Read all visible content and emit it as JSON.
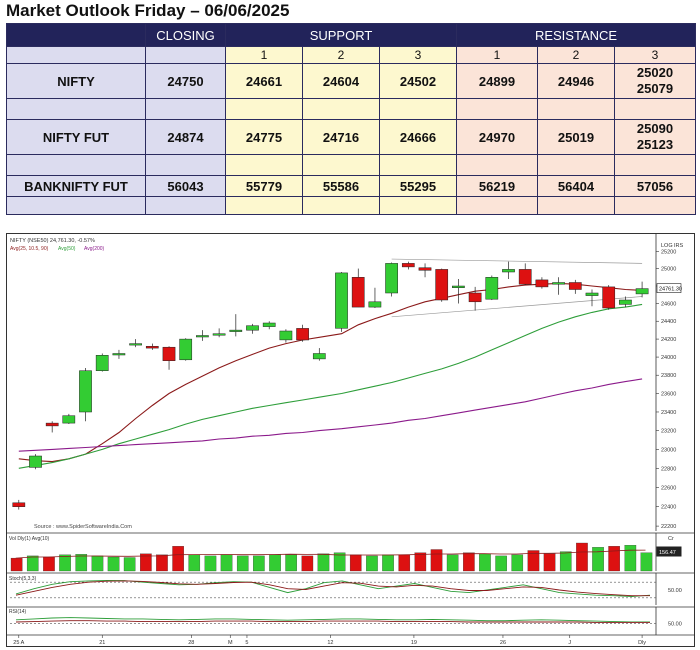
{
  "page": {
    "title": "Market Outlook Friday – 06/06/2025"
  },
  "table": {
    "headers": {
      "closing": "CLOSING",
      "support": "SUPPORT",
      "resistance": "RESISTANCE",
      "levels": [
        "1",
        "2",
        "3"
      ]
    },
    "rows": [
      {
        "name": "NIFTY",
        "closing": "24750",
        "support": [
          "24661",
          "24604",
          "24502"
        ],
        "resistance": [
          "24899",
          "24946",
          "25020"
        ],
        "resistance_extra": "25079"
      },
      {
        "name": "NIFTY FUT",
        "closing": "24874",
        "support": [
          "24775",
          "24716",
          "24666"
        ],
        "resistance": [
          "24970",
          "25019",
          "25090"
        ],
        "resistance_extra": "25123"
      },
      {
        "name": "BANKNIFTY FUT",
        "closing": "56043",
        "support": [
          "55779",
          "55586",
          "55295"
        ],
        "resistance": [
          "56219",
          "56404",
          "57056"
        ],
        "resistance_extra": ""
      }
    ]
  },
  "chart_data": {
    "type": "candlestick",
    "title": "NIFTY (NSE50) 24,761.30, -0.57%",
    "scale": "LOG",
    "scale_label": "LOG",
    "currency_label": "IRS",
    "ylim": [
      22150,
      25250
    ],
    "y_ticks": [
      "25200",
      "25000",
      "24800",
      "24600",
      "24400",
      "24200",
      "24000",
      "23800",
      "23600",
      "23400",
      "23200",
      "23000",
      "22800",
      "22600",
      "22400",
      "22200"
    ],
    "last_price_label": "24761.30",
    "x_labels": [
      "25 A",
      "21",
      "28",
      "M",
      "5",
      "12",
      "19",
      "26",
      "J",
      "Dly"
    ],
    "x_label_positions": [
      0,
      15,
      31,
      38,
      41,
      56,
      71,
      87,
      99,
      112
    ],
    "source_label": "Source : www.SpiderSoftwareIndia.Com",
    "candles": [
      {
        "o": 22440,
        "h": 22470,
        "l": 22370,
        "c": 22400
      },
      {
        "o": 22810,
        "h": 22950,
        "l": 22790,
        "c": 22930
      },
      {
        "o": 23280,
        "h": 23300,
        "l": 23180,
        "c": 23250
      },
      {
        "o": 23280,
        "h": 23380,
        "l": 23270,
        "c": 23360
      },
      {
        "o": 23400,
        "h": 23880,
        "l": 23300,
        "c": 23850
      },
      {
        "o": 23850,
        "h": 24040,
        "l": 23840,
        "c": 24020
      },
      {
        "o": 24040,
        "h": 24080,
        "l": 23980,
        "c": 24040
      },
      {
        "o": 24140,
        "h": 24200,
        "l": 24110,
        "c": 24150
      },
      {
        "o": 24120,
        "h": 24150,
        "l": 24080,
        "c": 24100
      },
      {
        "o": 24110,
        "h": 24120,
        "l": 23860,
        "c": 23960
      },
      {
        "o": 23970,
        "h": 24210,
        "l": 23960,
        "c": 24200
      },
      {
        "o": 24230,
        "h": 24300,
        "l": 24180,
        "c": 24240
      },
      {
        "o": 24250,
        "h": 24320,
        "l": 24220,
        "c": 24260
      },
      {
        "o": 24290,
        "h": 24480,
        "l": 24230,
        "c": 24300
      },
      {
        "o": 24300,
        "h": 24370,
        "l": 24260,
        "c": 24350
      },
      {
        "o": 24340,
        "h": 24400,
        "l": 24310,
        "c": 24380
      },
      {
        "o": 24190,
        "h": 24310,
        "l": 24160,
        "c": 24290
      },
      {
        "o": 24320,
        "h": 24360,
        "l": 24170,
        "c": 24190
      },
      {
        "o": 23980,
        "h": 24100,
        "l": 23960,
        "c": 24040
      },
      {
        "o": 24320,
        "h": 24960,
        "l": 24280,
        "c": 24950
      },
      {
        "o": 24900,
        "h": 25000,
        "l": 24560,
        "c": 24560
      },
      {
        "o": 24560,
        "h": 24780,
        "l": 24550,
        "c": 24620
      },
      {
        "o": 24720,
        "h": 25070,
        "l": 24680,
        "c": 25060
      },
      {
        "o": 25060,
        "h": 25080,
        "l": 24990,
        "c": 25020
      },
      {
        "o": 25010,
        "h": 25060,
        "l": 24900,
        "c": 24980
      },
      {
        "o": 24990,
        "h": 25000,
        "l": 24620,
        "c": 24640
      },
      {
        "o": 24780,
        "h": 24880,
        "l": 24600,
        "c": 24800
      },
      {
        "o": 24720,
        "h": 24790,
        "l": 24520,
        "c": 24620
      },
      {
        "o": 24650,
        "h": 24920,
        "l": 24640,
        "c": 24900
      },
      {
        "o": 24960,
        "h": 25080,
        "l": 24880,
        "c": 24990
      },
      {
        "o": 24990,
        "h": 25060,
        "l": 24810,
        "c": 24820
      },
      {
        "o": 24870,
        "h": 24900,
        "l": 24770,
        "c": 24790
      },
      {
        "o": 24820,
        "h": 24900,
        "l": 24700,
        "c": 24840
      },
      {
        "o": 24840,
        "h": 24870,
        "l": 24710,
        "c": 24760
      },
      {
        "o": 24690,
        "h": 24760,
        "l": 24570,
        "c": 24720
      },
      {
        "o": 24790,
        "h": 24810,
        "l": 24530,
        "c": 24550
      },
      {
        "o": 24590,
        "h": 24680,
        "l": 24560,
        "c": 24640
      },
      {
        "o": 24710,
        "h": 24850,
        "l": 24670,
        "c": 24770
      }
    ],
    "series": [
      {
        "name": "Avg(25, 10.5, 90)",
        "color": "#8b1a1a",
        "values": [
          22900,
          22880,
          22870,
          22900,
          22950,
          23060,
          23180,
          23330,
          23470,
          23600,
          23700,
          23790,
          23880,
          23960,
          24030,
          24100,
          24150,
          24190,
          24220,
          24260,
          24360,
          24430,
          24490,
          24560,
          24620,
          24660,
          24700,
          24740,
          24760,
          24790,
          24810,
          24820,
          24830,
          24820,
          24800,
          24780,
          24760,
          24750
        ]
      },
      {
        "name": "Avg(50)",
        "color": "#2e9e3a",
        "values": [
          22800,
          22830,
          22860,
          22900,
          22950,
          23000,
          23060,
          23110,
          23160,
          23210,
          23270,
          23320,
          23360,
          23400,
          23440,
          23470,
          23500,
          23530,
          23560,
          23600,
          23640,
          23680,
          23720,
          23770,
          23820,
          23870,
          23930,
          24000,
          24080,
          24160,
          24240,
          24320,
          24390,
          24450,
          24500,
          24540,
          24560,
          24590
        ]
      },
      {
        "name": "Avg(200)",
        "color": "#8b1a8b",
        "values": [
          22980,
          22990,
          23000,
          23010,
          23020,
          23030,
          23040,
          23050,
          23060,
          23070,
          23080,
          23090,
          23110,
          23120,
          23140,
          23150,
          23170,
          23180,
          23200,
          23220,
          23240,
          23260,
          23280,
          23310,
          23330,
          23360,
          23390,
          23420,
          23450,
          23480,
          23510,
          23550,
          23590,
          23630,
          23660,
          23700,
          23730,
          23760
        ]
      }
    ],
    "trend_lines": [
      {
        "from": [
          22,
          25110
        ],
        "to": [
          37,
          25060
        ]
      },
      {
        "from": [
          22,
          24450
        ],
        "to": [
          37,
          24680
        ]
      }
    ],
    "volume_panel": {
      "label": "Vol  Dly(1)  Avg(10)",
      "right_label": "156.47",
      "right_tag": "Cr",
      "values": [
        120,
        140,
        130,
        150,
        155,
        140,
        130,
        125,
        160,
        150,
        230,
        150,
        140,
        150,
        140,
        140,
        150,
        150,
        140,
        160,
        170,
        150,
        140,
        150,
        150,
        170,
        200,
        150,
        170,
        160,
        140,
        150,
        190,
        160,
        180,
        260,
        220,
        230,
        240,
        170
      ]
    },
    "stochastic_panel": {
      "label": "Stoch(5,3,3)",
      "right_label": "50.00",
      "k": [
        35,
        55,
        72,
        82,
        85,
        87,
        86,
        80,
        75,
        70,
        72,
        78,
        82,
        80,
        60,
        40,
        55,
        78,
        85,
        70,
        55,
        65,
        75,
        60,
        45,
        40,
        50,
        60,
        70,
        55,
        40,
        35,
        30,
        28,
        25,
        30
      ],
      "d": [
        30,
        45,
        60,
        72,
        80,
        84,
        85,
        83,
        79,
        74,
        72,
        75,
        79,
        80,
        70,
        55,
        52,
        65,
        78,
        76,
        65,
        62,
        68,
        65,
        55,
        48,
        48,
        55,
        62,
        60,
        50,
        42,
        36,
        32,
        28,
        28
      ]
    },
    "rsi_panel": {
      "label": "RSI(14)",
      "right_label": "50.00",
      "a": [
        70,
        72,
        74,
        75,
        74,
        73,
        72,
        72,
        71,
        70,
        71,
        72,
        72,
        71,
        70,
        69,
        70,
        71,
        72,
        72,
        71,
        70,
        70,
        71,
        70,
        69,
        68,
        68,
        69,
        70,
        69,
        68,
        67,
        66,
        65,
        65
      ],
      "b": [
        65,
        66,
        67,
        68,
        68,
        67,
        67,
        66,
        66,
        66,
        66,
        67,
        67,
        67,
        66,
        66,
        66,
        67,
        67,
        67,
        67,
        66,
        66,
        66,
        66,
        65,
        65,
        65,
        65,
        65,
        65,
        65,
        64,
        64,
        64,
        64
      ]
    }
  }
}
